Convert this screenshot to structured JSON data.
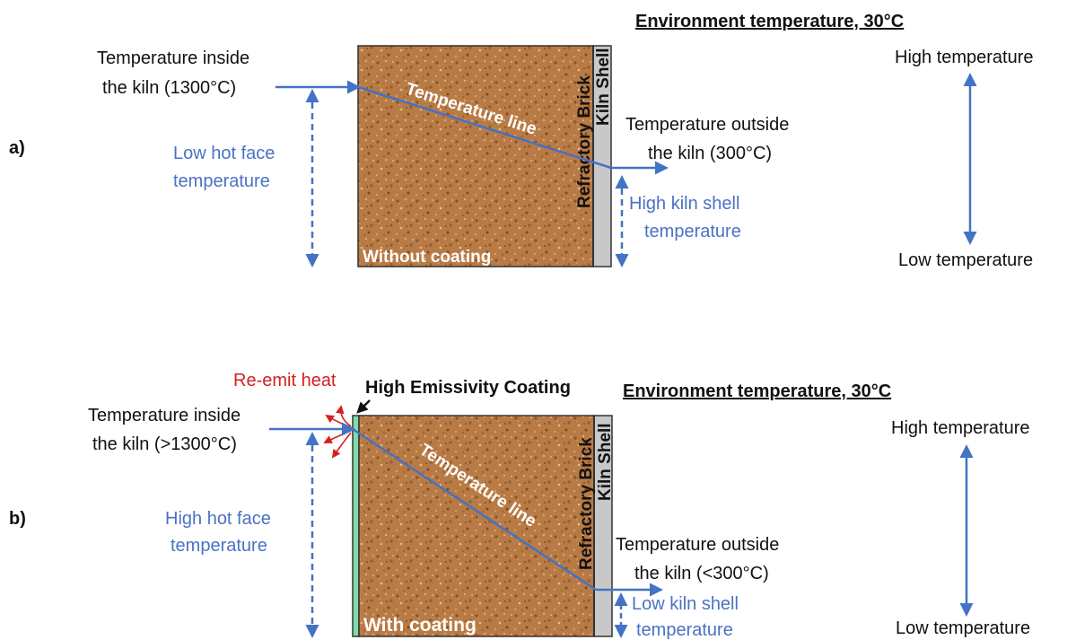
{
  "colors": {
    "brick": "#b97b45",
    "shell": "#c8c8c8",
    "coating": "#7fdcaa",
    "line_blue": "#4472c4",
    "text_blue": "#4a72c4",
    "text_red": "#d42020"
  },
  "panel_a": {
    "marker": "a)",
    "environment": "Environment temperature, 30°C",
    "inside_line1": "Temperature inside",
    "inside_line2": "the kiln (1300°C)",
    "hot_face_line1": "Low hot face",
    "hot_face_line2": "temperature",
    "temperature_line": "Temperature line",
    "refractory_label": "Refractory Brick",
    "shell_label": "Kiln Shell",
    "outside_line1": "Temperature outside",
    "outside_line2": "the kiln (300°C)",
    "shell_temp_line1": "High kiln shell",
    "shell_temp_line2": "temperature",
    "coating_label": "Without coating",
    "scale_high": "High temperature",
    "scale_low": "Low temperature"
  },
  "panel_b": {
    "marker": "b)",
    "environment": "Environment temperature, 30°C",
    "reemit": "Re-emit heat",
    "coating_name": "High Emissivity Coating",
    "inside_line1": "Temperature inside",
    "inside_line2": "the kiln (>1300°C)",
    "hot_face_line1": "High hot face",
    "hot_face_line2": "temperature",
    "temperature_line": "Temperature line",
    "refractory_label": "Refractory Brick",
    "shell_label": "Kiln Shell",
    "outside_line1": "Temperature outside",
    "outside_line2": "the kiln (<300°C)",
    "shell_temp_line1": "Low kiln shell",
    "shell_temp_line2": "temperature",
    "coating_label": "With coating",
    "scale_high": "High temperature",
    "scale_low": "Low temperature"
  }
}
